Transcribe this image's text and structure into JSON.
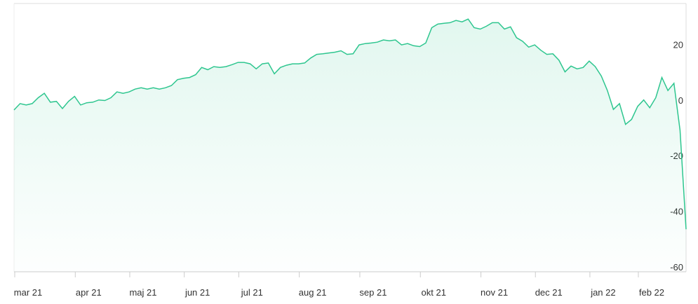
{
  "chart_data": {
    "type": "area",
    "categories": [
      "mar 21",
      null,
      null,
      null,
      null,
      null,
      null,
      null,
      null,
      null,
      "apr 21",
      null,
      null,
      null,
      null,
      null,
      null,
      null,
      null,
      "maj 21",
      null,
      null,
      null,
      null,
      null,
      null,
      null,
      null,
      "jun 21",
      null,
      null,
      null,
      null,
      null,
      null,
      null,
      null,
      "jul 21",
      null,
      null,
      null,
      null,
      null,
      null,
      null,
      null,
      null,
      "aug 21",
      null,
      null,
      null,
      null,
      null,
      null,
      null,
      null,
      null,
      "sep 21",
      null,
      null,
      null,
      null,
      null,
      null,
      null,
      null,
      null,
      "okt 21",
      null,
      null,
      null,
      null,
      null,
      null,
      null,
      null,
      null,
      "nov 21",
      null,
      null,
      null,
      null,
      null,
      null,
      null,
      null,
      "dec 21",
      null,
      null,
      null,
      null,
      null,
      null,
      null,
      null,
      "jan 22",
      null,
      null,
      null,
      null,
      null,
      null,
      null,
      "feb 22",
      null,
      null,
      null,
      null,
      null,
      null,
      null,
      null
    ],
    "values": [
      -1.8,
      0.5,
      0,
      0.5,
      2.6,
      4.2,
      1,
      1.3,
      -1.3,
      1.3,
      3.1,
      0,
      0.8,
      1,
      1.8,
      1.6,
      2.6,
      4.7,
      4.2,
      4.7,
      5.7,
      6.2,
      5.7,
      6.2,
      5.7,
      6.2,
      7,
      9.1,
      9.6,
      9.9,
      10.9,
      13.5,
      12.7,
      13.8,
      13.5,
      13.8,
      14.5,
      15.3,
      15.3,
      14.8,
      13,
      14.8,
      15.1,
      11.2,
      13.5,
      14.3,
      14.8,
      14.8,
      15.1,
      16.9,
      18.2,
      18.4,
      18.7,
      19,
      19.5,
      18.2,
      18.4,
      21.6,
      22.1,
      22.3,
      22.6,
      23.4,
      23.1,
      23.4,
      21.6,
      22.1,
      21.3,
      21,
      22.3,
      27.8,
      29.1,
      29.4,
      29.6,
      30.4,
      29.9,
      30.9,
      27.8,
      27.3,
      28.3,
      29.6,
      29.6,
      27.3,
      28.1,
      24.2,
      22.9,
      20.8,
      21.6,
      19.7,
      18.2,
      18.4,
      16.1,
      11.9,
      14,
      13,
      13.5,
      15.8,
      13.8,
      10.4,
      5.2,
      -1.6,
      0.5,
      -7,
      -5.2,
      -0.5,
      1.8,
      -1,
      2.6,
      9.9,
      5.2,
      7.8,
      -9.1,
      -44.7
    ],
    "color": "#2ec68f",
    "ylim": [
      -60,
      36.5
    ],
    "yticks": [
      20,
      0,
      -20,
      -40,
      -60
    ]
  }
}
